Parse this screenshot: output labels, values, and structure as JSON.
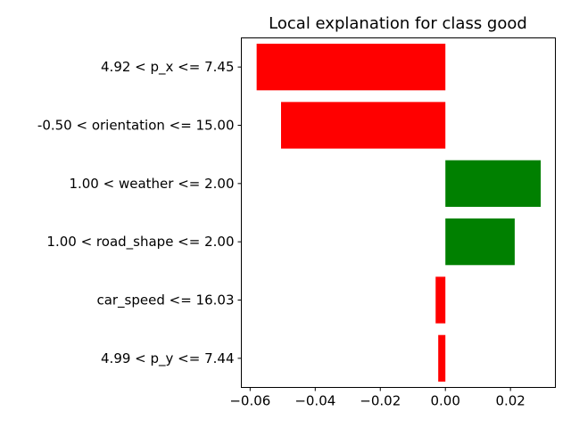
{
  "chart_data": {
    "type": "bar",
    "orientation": "horizontal",
    "title": "Local explanation for class good",
    "xlabel": "",
    "ylabel": "",
    "categories": [
      "4.92 < p_x <= 7.45",
      "-0.50 < orientation <= 15.00",
      "1.00 < weather <= 2.00",
      "1.00 < road_shape <= 2.00",
      "car_speed <= 16.03",
      "4.99 < p_y <= 7.44"
    ],
    "values": [
      -0.058,
      -0.0505,
      0.0293,
      0.0213,
      -0.003,
      -0.0022
    ],
    "xlim": [
      -0.0627,
      0.0338
    ],
    "xticks": [
      -0.06,
      -0.04,
      -0.02,
      0.0,
      0.02
    ],
    "xtick_labels": [
      "−0.06",
      "−0.04",
      "−0.02",
      "0.00",
      "0.02"
    ],
    "colors": {
      "positive": "#008000",
      "negative": "#ff0000"
    },
    "grid": false,
    "legend": "none"
  }
}
